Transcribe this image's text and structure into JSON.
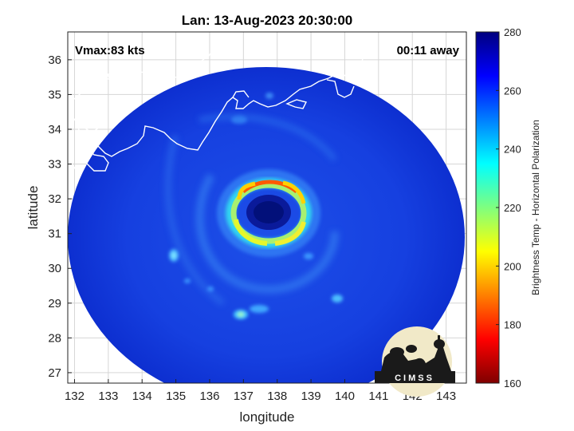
{
  "title": "Lan: 13-Aug-2023 20:30:00",
  "annotations": {
    "vmax": "Vmax:83 kts",
    "away": "00:11 away"
  },
  "logo_text": "CIMSS",
  "map": {
    "xlabel": "longitude",
    "ylabel": "latitude",
    "xlim": [
      131.8,
      143.6
    ],
    "ylim": [
      26.7,
      36.8
    ],
    "xticks": [
      132,
      133,
      134,
      135,
      136,
      137,
      138,
      139,
      140,
      141,
      142,
      143
    ],
    "yticks": [
      27,
      28,
      29,
      30,
      31,
      32,
      33,
      34,
      35,
      36
    ],
    "grid": true,
    "swath_center": {
      "lon": 137.75,
      "lat": 31.8
    },
    "eye_center": {
      "lon": 137.8,
      "lat": 31.85
    }
  },
  "colorbar": {
    "label": "Brightness Temp - Horizontal Polarization",
    "min": 160,
    "max": 280,
    "ticks": [
      160,
      180,
      200,
      220,
      240,
      260,
      280
    ],
    "colormap": "jet",
    "colors": [
      "#7f0000",
      "#ff0000",
      "#ff7f00",
      "#ffff00",
      "#7fff7f",
      "#00ffff",
      "#007fff",
      "#0000ff",
      "#00007f"
    ]
  }
}
